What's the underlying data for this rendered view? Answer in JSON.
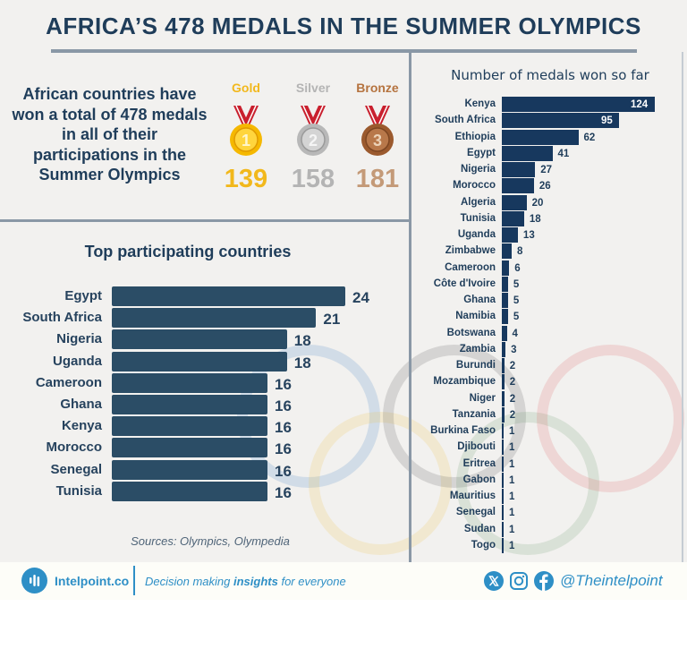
{
  "title": "AFRICA’S 478 MEDALS IN THE SUMMER OLYMPICS",
  "summary": {
    "text": "African countries have won a total of 478 medals in all of their participations in the Summer Olympics",
    "total_medals": 478
  },
  "medals": [
    {
      "label": "Gold",
      "count": "139",
      "rank": "1",
      "color": "#f2b81c"
    },
    {
      "label": "Silver",
      "count": "158",
      "rank": "2",
      "color": "#b4b4b4"
    },
    {
      "label": "Bronze",
      "count": "181",
      "rank": "3",
      "color": "#b5825a"
    }
  ],
  "sources": "Sources: Olympics, Olympedia",
  "footer": {
    "brand": "Intelpoint.co",
    "tagline_pre": "Decision making ",
    "tagline_bold": "insights",
    "tagline_post": " for everyone",
    "handle": "@Theintelpoint",
    "icons": [
      "x-icon",
      "instagram-icon",
      "facebook-icon"
    ],
    "accent": "#2e8fc6"
  },
  "chart_data": [
    {
      "type": "bar",
      "orientation": "horizontal",
      "title": "Top participating countries",
      "categories": [
        "Egypt",
        "South Africa",
        "Nigeria",
        "Uganda",
        "Cameroon",
        "Ghana",
        "Kenya",
        "Morocco",
        "Senegal",
        "Tunisia"
      ],
      "values": [
        24,
        21,
        18,
        18,
        16,
        16,
        16,
        16,
        16,
        16
      ],
      "xlabel": "",
      "ylabel": "",
      "xlim": [
        0,
        24
      ],
      "grid": false,
      "bar_color": "#2b4d66",
      "data_labels": "outside"
    },
    {
      "type": "bar",
      "orientation": "horizontal",
      "title": "Number of medals won so far",
      "categories": [
        "Kenya",
        "South Africa",
        "Ethiopia",
        "Egypt",
        "Nigeria",
        "Morocco",
        "Algeria",
        "Tunisia",
        "Uganda",
        "Zimbabwe",
        "Cameroon",
        "Côte d'Ivoire",
        "Ghana",
        "Namibia",
        "Botswana",
        "Zambia",
        "Burundi",
        "Mozambique",
        "Niger",
        "Tanzania",
        "Burkina Faso",
        "Djibouti",
        "Eritrea",
        "Gabon",
        "Mauritius",
        "Senegal",
        "Sudan",
        "Togo"
      ],
      "values": [
        124,
        95,
        62,
        41,
        27,
        26,
        20,
        18,
        13,
        8,
        6,
        5,
        5,
        5,
        4,
        3,
        2,
        2,
        2,
        2,
        1,
        1,
        1,
        1,
        1,
        1,
        1,
        1
      ],
      "xlabel": "",
      "ylabel": "",
      "xlim": [
        0,
        124
      ],
      "grid": false,
      "bar_color": "#17385e",
      "data_labels": "inside for Kenya and South Africa, outside otherwise"
    }
  ]
}
